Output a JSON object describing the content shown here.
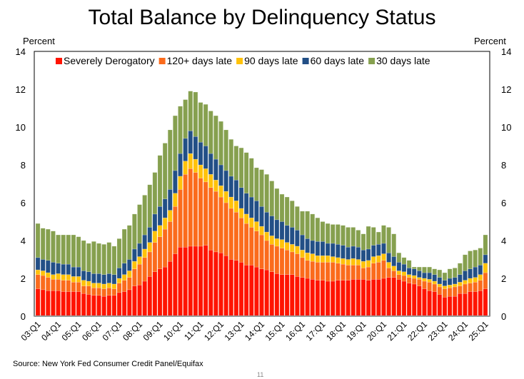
{
  "chart_data": {
    "type": "bar",
    "stacked": true,
    "title": "Total Balance by Delinquency Status",
    "ylabel_left": "Percent",
    "ylabel_right": "Percent",
    "ylim": [
      0,
      14
    ],
    "yticks": [
      0,
      2,
      4,
      6,
      8,
      10,
      12,
      14
    ],
    "x_tick_labels": [
      "03:Q1",
      "04:Q1",
      "05:Q1",
      "06:Q1",
      "07:Q1",
      "08:Q1",
      "09:Q1",
      "10:Q1",
      "11:Q1",
      "12:Q1",
      "13:Q1",
      "14:Q1",
      "15:Q1",
      "16:Q1",
      "17:Q1",
      "18:Q1",
      "19:Q1",
      "20:Q1",
      "21:Q1",
      "22:Q1",
      "23:Q1",
      "24:Q1",
      "25:Q1"
    ],
    "legend_position": "top",
    "cumulative_top": {
      "severe": [
        1.45,
        1.4,
        1.35,
        1.35,
        1.35,
        1.3,
        1.3,
        1.3,
        1.3,
        1.2,
        1.15,
        1.1,
        1.1,
        1.05,
        1.1,
        1.1,
        1.25,
        1.3,
        1.4,
        1.6,
        1.65,
        1.85,
        2.1,
        2.35,
        2.5,
        2.6,
        2.9,
        3.3,
        3.65,
        3.65,
        3.7,
        3.7,
        3.7,
        3.75,
        3.5,
        3.4,
        3.35,
        3.2,
        3.0,
        2.95,
        2.85,
        2.7,
        2.7,
        2.6,
        2.5,
        2.45,
        2.35,
        2.25,
        2.2,
        2.2,
        2.2,
        2.1,
        2.05,
        2.0,
        1.95,
        1.9,
        1.9,
        1.85,
        1.85,
        1.9,
        1.9,
        1.9,
        1.95,
        1.95,
        1.95,
        1.9,
        1.95,
        1.95,
        2.0,
        2.05,
        2.05,
        1.95,
        1.85,
        1.75,
        1.7,
        1.6,
        1.45,
        1.35,
        1.3,
        1.15,
        1.0,
        1.05,
        1.05,
        1.2,
        1.2,
        1.3,
        1.3,
        1.35,
        1.45
      ],
      "d120": [
        2.2,
        2.15,
        2.05,
        1.95,
        1.95,
        1.9,
        1.9,
        1.8,
        1.8,
        1.6,
        1.6,
        1.5,
        1.5,
        1.45,
        1.5,
        1.45,
        1.75,
        1.9,
        2.05,
        2.5,
        2.75,
        3.1,
        3.4,
        3.9,
        4.2,
        4.6,
        5.0,
        5.8,
        6.7,
        7.5,
        7.8,
        7.6,
        7.3,
        7.1,
        6.8,
        6.6,
        6.3,
        6.0,
        5.7,
        5.5,
        5.2,
        4.9,
        4.7,
        4.5,
        4.3,
        4.0,
        3.8,
        3.7,
        3.6,
        3.5,
        3.4,
        3.3,
        3.1,
        2.95,
        2.9,
        2.85,
        2.85,
        2.85,
        2.85,
        2.8,
        2.75,
        2.7,
        2.7,
        2.7,
        2.55,
        2.6,
        2.8,
        2.85,
        2.95,
        2.55,
        2.4,
        2.2,
        2.15,
        2.05,
        2.0,
        1.95,
        1.85,
        1.8,
        1.7,
        1.55,
        1.45,
        1.5,
        1.55,
        1.6,
        1.7,
        1.75,
        1.8,
        1.9,
        2.3
      ],
      "d90": [
        2.45,
        2.4,
        2.3,
        2.2,
        2.25,
        2.2,
        2.2,
        2.1,
        2.1,
        1.9,
        1.85,
        1.75,
        1.75,
        1.7,
        1.75,
        1.7,
        2.0,
        2.2,
        2.4,
        2.9,
        3.15,
        3.55,
        3.9,
        4.5,
        4.8,
        5.2,
        5.6,
        6.5,
        7.4,
        8.2,
        8.6,
        8.3,
        8.0,
        7.8,
        7.5,
        7.2,
        6.9,
        6.6,
        6.3,
        6.1,
        5.7,
        5.4,
        5.2,
        5.0,
        4.75,
        4.45,
        4.25,
        4.1,
        4.05,
        3.9,
        3.8,
        3.7,
        3.5,
        3.35,
        3.3,
        3.2,
        3.2,
        3.2,
        3.15,
        3.1,
        3.05,
        3.0,
        3.05,
        3.0,
        2.9,
        2.95,
        3.15,
        3.2,
        3.3,
        2.85,
        2.65,
        2.4,
        2.35,
        2.2,
        2.15,
        2.05,
        2.0,
        1.95,
        1.85,
        1.7,
        1.6,
        1.65,
        1.7,
        1.8,
        1.9,
        2.0,
        2.05,
        2.2,
        2.8
      ],
      "d60": [
        3.1,
        3.0,
        2.95,
        2.85,
        2.8,
        2.75,
        2.75,
        2.6,
        2.6,
        2.4,
        2.35,
        2.25,
        2.25,
        2.2,
        2.25,
        2.2,
        2.55,
        2.8,
        3.0,
        3.55,
        3.85,
        4.3,
        4.7,
        5.4,
        5.8,
        6.2,
        6.7,
        7.7,
        8.6,
        9.4,
        9.8,
        9.5,
        9.2,
        9.0,
        8.6,
        8.3,
        8.0,
        7.7,
        7.4,
        7.2,
        6.8,
        6.5,
        6.3,
        6.1,
        5.8,
        5.5,
        5.3,
        5.1,
        5.0,
        4.8,
        4.7,
        4.55,
        4.3,
        4.1,
        4.0,
        3.95,
        3.95,
        3.85,
        3.85,
        3.8,
        3.75,
        3.65,
        3.7,
        3.65,
        3.5,
        3.55,
        3.75,
        3.8,
        3.85,
        3.35,
        3.15,
        2.85,
        2.75,
        2.55,
        2.5,
        2.4,
        2.3,
        2.3,
        2.2,
        2.05,
        1.9,
        2.0,
        2.05,
        2.2,
        2.4,
        2.5,
        2.6,
        2.7,
        3.25
      ],
      "d30": [
        4.9,
        4.65,
        4.6,
        4.5,
        4.3,
        4.3,
        4.3,
        4.3,
        4.2,
        4.0,
        3.85,
        3.95,
        3.85,
        3.8,
        3.9,
        3.7,
        4.1,
        4.6,
        4.8,
        5.4,
        5.9,
        6.4,
        6.95,
        7.6,
        8.5,
        9.15,
        9.85,
        10.6,
        11.1,
        11.45,
        11.9,
        11.85,
        11.3,
        11.2,
        10.85,
        10.6,
        10.3,
        9.85,
        9.35,
        9.0,
        8.9,
        8.65,
        8.35,
        7.85,
        7.75,
        7.5,
        7.15,
        6.75,
        6.45,
        6.3,
        6.1,
        5.8,
        5.55,
        5.55,
        5.4,
        5.2,
        5.0,
        4.9,
        4.85,
        4.85,
        4.8,
        4.7,
        4.7,
        4.55,
        4.35,
        4.75,
        4.7,
        4.45,
        4.8,
        4.7,
        4.35,
        3.35,
        3.1,
        2.95,
        2.6,
        2.6,
        2.6,
        2.6,
        2.5,
        2.45,
        2.3,
        2.5,
        2.55,
        2.8,
        3.25,
        3.45,
        3.5,
        3.6,
        4.3
      ]
    },
    "series": [
      {
        "name": "Severely Derogatory",
        "color": "#ff1400"
      },
      {
        "name": "120+ days late",
        "color": "#fb6b1c"
      },
      {
        "name": "90 days late",
        "color": "#ffc20a"
      },
      {
        "name": "60 days late",
        "color": "#224f86"
      },
      {
        "name": "30 days late",
        "color": "#86a04f"
      }
    ],
    "source": "Source: New York Fed Consumer Credit Panel/Equifax",
    "page_number": "11"
  }
}
